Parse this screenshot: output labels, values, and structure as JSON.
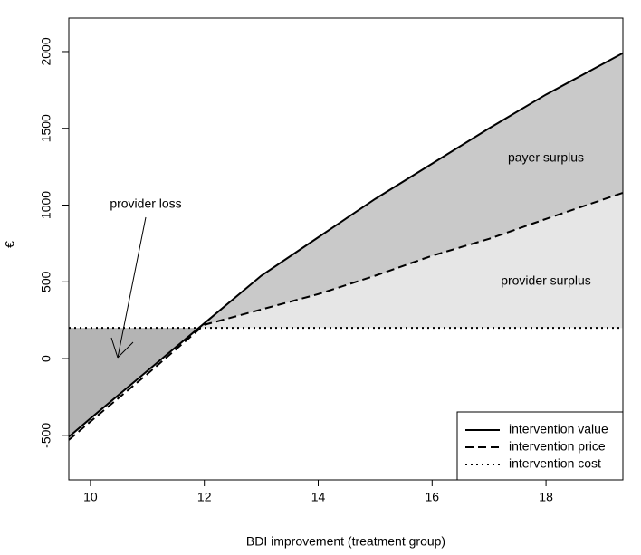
{
  "chart_data": {
    "type": "line",
    "xlabel": "BDI improvement (treatment group)",
    "ylabel": "€",
    "x": [
      9.62,
      10,
      11,
      12,
      13,
      14,
      15,
      16,
      17,
      18,
      19.35
    ],
    "series": [
      {
        "name": "intervention value",
        "color": "#000000",
        "dash": "solid",
        "values": [
          -510,
          -390,
          -80,
          230,
          540,
          790,
          1040,
          1270,
          1500,
          1720,
          1990
        ]
      },
      {
        "name": "intervention price",
        "color": "#000000",
        "dash": "dashed",
        "values": [
          -530,
          -410,
          -100,
          220,
          320,
          420,
          540,
          670,
          780,
          910,
          1080
        ]
      },
      {
        "name": "intervention cost",
        "color": "#000000",
        "dash": "dotted",
        "values": [
          200,
          200,
          200,
          200,
          200,
          200,
          200,
          200,
          200,
          200,
          200
        ]
      }
    ],
    "annotations": [
      "payer surplus",
      "provider surplus",
      "provider loss"
    ],
    "fill_colors": {
      "payer": "#c9c9c9",
      "provider": "#e6e6e6",
      "loss": "#b4b4b4"
    },
    "xlim": [
      9.62,
      19.35
    ],
    "ylim": [
      -790,
      2218
    ],
    "xticks": [
      10,
      12,
      14,
      16,
      18
    ],
    "yticks": [
      -500,
      0,
      500,
      1000,
      1500,
      2000
    ],
    "legend": "bottom-right"
  }
}
